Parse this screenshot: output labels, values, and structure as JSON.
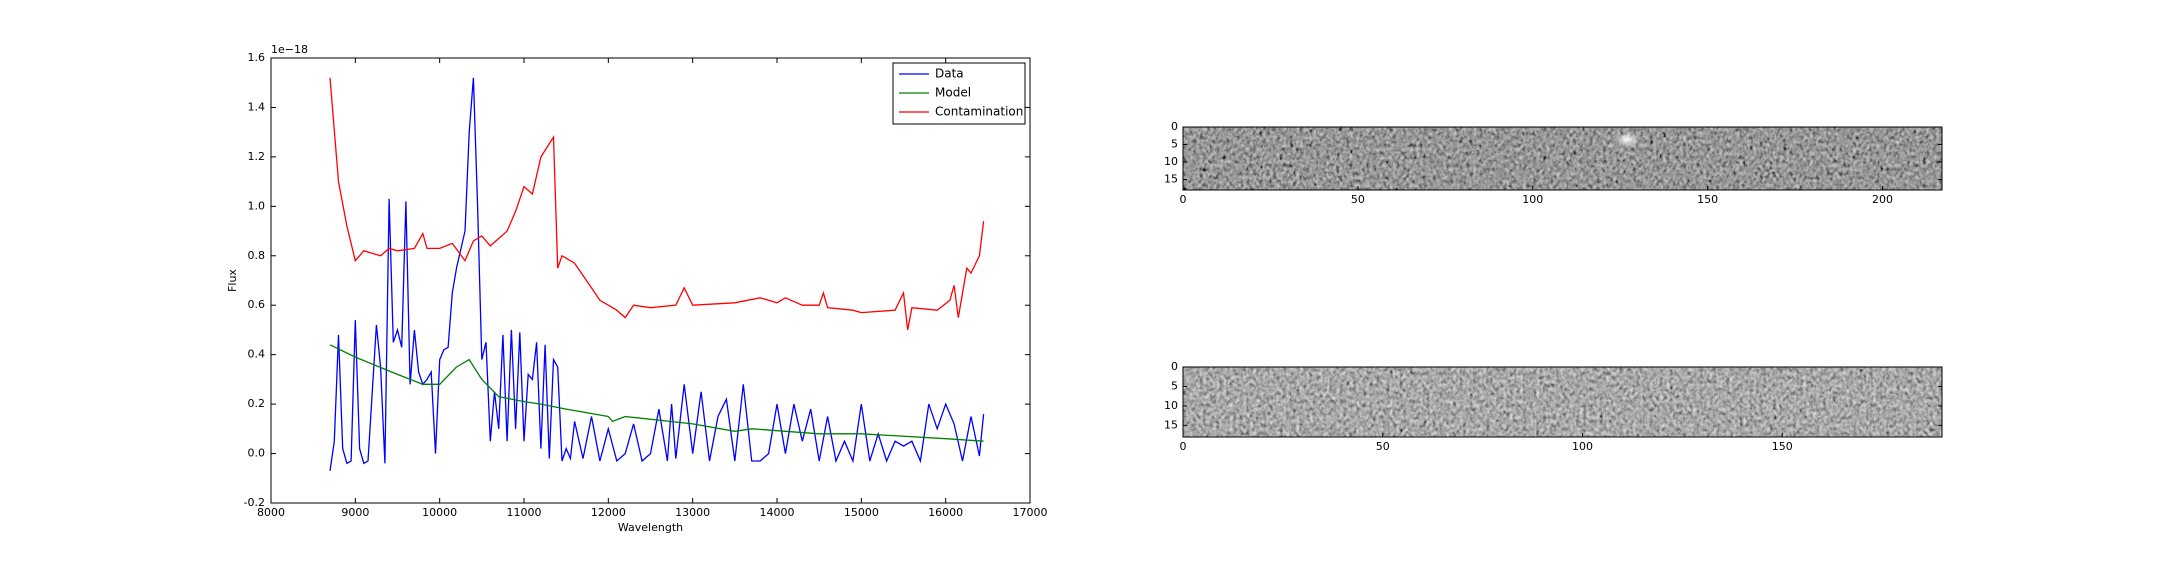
{
  "chart_data": [
    {
      "type": "line",
      "xlabel": "Wavelength",
      "ylabel": "Flux",
      "y_offset_label": "1e−18",
      "xlim": [
        8000,
        17000
      ],
      "xticks": [
        8000,
        9000,
        10000,
        11000,
        12000,
        13000,
        14000,
        15000,
        16000,
        17000
      ],
      "ylim": [
        -0.2,
        1.6
      ],
      "yticks": [
        -0.2,
        0.0,
        0.2,
        0.4,
        0.6,
        0.8,
        1.0,
        1.2,
        1.4,
        1.6
      ],
      "legend": "upper right",
      "series": [
        {
          "name": "Data",
          "color": "#0000ff",
          "x": [
            8700,
            8750,
            8800,
            8850,
            8900,
            8950,
            9000,
            9050,
            9100,
            9150,
            9250,
            9300,
            9350,
            9400,
            9450,
            9500,
            9550,
            9600,
            9650,
            9700,
            9750,
            9800,
            9850,
            9900,
            9950,
            10000,
            10050,
            10100,
            10150,
            10200,
            10300,
            10350,
            10400,
            10450,
            10500,
            10550,
            10600,
            10650,
            10700,
            10750,
            10800,
            10850,
            10900,
            10950,
            11000,
            11050,
            11100,
            11150,
            11200,
            11250,
            11300,
            11350,
            11400,
            11450,
            11500,
            11550,
            11600,
            11700,
            11800,
            11900,
            12000,
            12100,
            12200,
            12300,
            12400,
            12500,
            12600,
            12700,
            12750,
            12800,
            12900,
            13000,
            13100,
            13200,
            13300,
            13400,
            13500,
            13600,
            13700,
            13800,
            13900,
            14000,
            14100,
            14200,
            14300,
            14400,
            14500,
            14600,
            14700,
            14800,
            14900,
            15000,
            15100,
            15200,
            15300,
            15400,
            15500,
            15600,
            15700,
            15800,
            15900,
            16000,
            16100,
            16200,
            16300,
            16400,
            16450
          ],
          "values": [
            -0.07,
            0.05,
            0.48,
            0.02,
            -0.04,
            -0.03,
            0.54,
            0.02,
            -0.04,
            -0.03,
            0.52,
            0.35,
            -0.04,
            1.03,
            0.45,
            0.5,
            0.43,
            1.02,
            0.28,
            0.5,
            0.33,
            0.28,
            0.3,
            0.33,
            0.0,
            0.38,
            0.42,
            0.43,
            0.65,
            0.75,
            0.9,
            1.3,
            1.52,
            1.0,
            0.38,
            0.45,
            0.05,
            0.25,
            0.1,
            0.48,
            0.05,
            0.5,
            0.1,
            0.49,
            0.05,
            0.32,
            0.3,
            0.45,
            0.02,
            0.44,
            -0.02,
            0.38,
            0.35,
            -0.03,
            0.02,
            -0.02,
            0.13,
            -0.02,
            0.15,
            -0.03,
            0.1,
            -0.03,
            0.0,
            0.12,
            -0.03,
            0.0,
            0.18,
            -0.03,
            0.2,
            -0.02,
            0.28,
            0.0,
            0.25,
            -0.03,
            0.15,
            0.22,
            -0.03,
            0.28,
            -0.03,
            -0.03,
            0.0,
            0.2,
            0.0,
            0.2,
            0.05,
            0.18,
            -0.03,
            0.15,
            -0.03,
            0.05,
            -0.03,
            0.2,
            -0.03,
            0.08,
            -0.03,
            0.05,
            0.03,
            0.05,
            -0.03,
            0.2,
            0.1,
            0.2,
            0.12,
            -0.03,
            0.15,
            -0.01,
            0.16
          ]
        },
        {
          "name": "Model",
          "color": "#008000",
          "x": [
            8700,
            9000,
            9500,
            9800,
            10000,
            10200,
            10350,
            10500,
            10700,
            11000,
            11200,
            11500,
            12000,
            12050,
            12200,
            13000,
            13500,
            13700,
            14500,
            15000,
            16000,
            16450
          ],
          "values": [
            0.44,
            0.39,
            0.32,
            0.28,
            0.28,
            0.35,
            0.38,
            0.3,
            0.23,
            0.21,
            0.2,
            0.18,
            0.15,
            0.13,
            0.15,
            0.12,
            0.09,
            0.1,
            0.08,
            0.08,
            0.06,
            0.05
          ]
        },
        {
          "name": "Contamination",
          "color": "#ff0000",
          "x": [
            8700,
            8800,
            8900,
            9000,
            9100,
            9300,
            9400,
            9500,
            9700,
            9800,
            9850,
            10000,
            10150,
            10300,
            10400,
            10500,
            10600,
            10800,
            10900,
            11000,
            11100,
            11200,
            11350,
            11400,
            11450,
            11600,
            11800,
            11900,
            12000,
            12100,
            12200,
            12300,
            12500,
            12800,
            12900,
            13000,
            13500,
            13800,
            14000,
            14100,
            14300,
            14500,
            14550,
            14600,
            14900,
            15000,
            15400,
            15500,
            15550,
            15600,
            15900,
            16050,
            16100,
            16150,
            16250,
            16300,
            16400,
            16450
          ],
          "values": [
            1.52,
            1.1,
            0.92,
            0.78,
            0.82,
            0.8,
            0.83,
            0.82,
            0.83,
            0.89,
            0.83,
            0.83,
            0.85,
            0.78,
            0.86,
            0.88,
            0.84,
            0.9,
            0.98,
            1.08,
            1.05,
            1.2,
            1.28,
            0.75,
            0.8,
            0.77,
            0.67,
            0.62,
            0.6,
            0.58,
            0.55,
            0.6,
            0.59,
            0.6,
            0.67,
            0.6,
            0.61,
            0.63,
            0.61,
            0.63,
            0.6,
            0.6,
            0.65,
            0.59,
            0.58,
            0.57,
            0.58,
            0.65,
            0.5,
            0.59,
            0.58,
            0.62,
            0.68,
            0.55,
            0.75,
            0.73,
            0.8,
            0.94
          ]
        }
      ]
    },
    {
      "type": "image",
      "xlim": [
        0,
        217
      ],
      "xticks": [
        0,
        50,
        100,
        150,
        200
      ],
      "ylim": [
        18,
        0
      ],
      "yticks": [
        0,
        5,
        10,
        15
      ]
    },
    {
      "type": "image",
      "xlim": [
        0,
        190
      ],
      "xticks": [
        0,
        50,
        100,
        150
      ],
      "ylim": [
        18,
        0
      ],
      "yticks": [
        0,
        5,
        10,
        15
      ]
    }
  ]
}
